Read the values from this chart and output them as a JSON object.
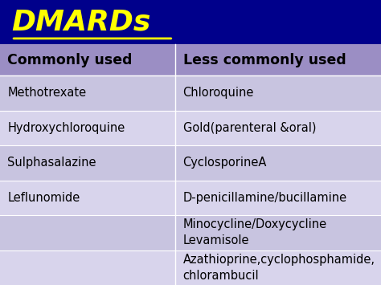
{
  "title": "DMARDs",
  "title_color": "#FFFF00",
  "title_bg_color": "#00008B",
  "header_bg_color": "#9B8EC4",
  "header_left": "Commonly used",
  "header_right": "Less commonly used",
  "header_text_color": "#000000",
  "row_bg_colors": [
    "#C8C4E0",
    "#D8D4EC"
  ],
  "col_left": [
    "Methotrexate",
    "Hydroxychloroquine",
    "Sulphasalazine",
    "Leflunomide",
    "",
    ""
  ],
  "col_right": [
    "Chloroquine",
    "Gold(parenteral &oral)",
    "CyclosporineA",
    "D-penicillamine/bucillamine",
    "Minocycline/Doxycycline\nLevamisole",
    "Azathioprine,cyclophosphamide,\nchlorambucil"
  ],
  "figsize": [
    4.74,
    3.55
  ],
  "dpi": 100
}
